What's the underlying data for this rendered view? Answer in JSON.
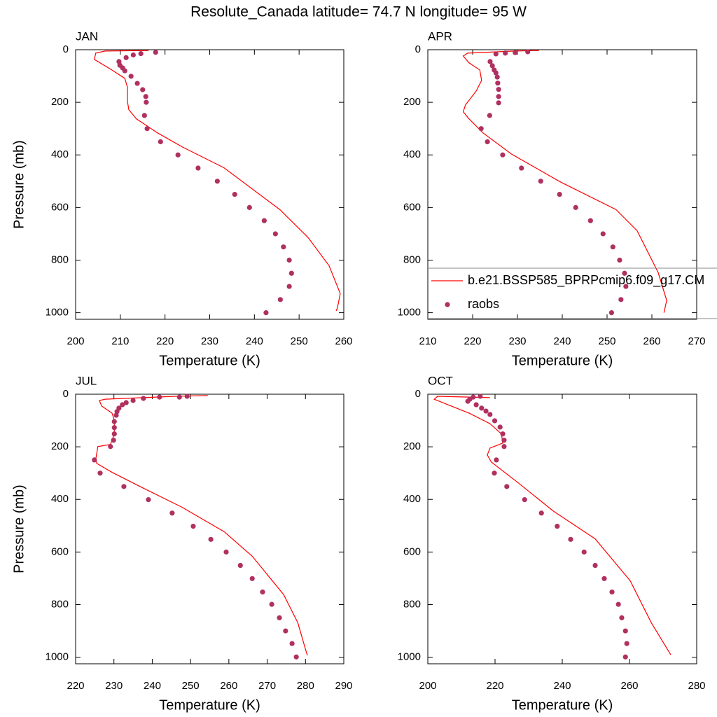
{
  "title": "Resolute_Canada  latitude= 74.7 N longitude= 95 W",
  "chart_data": [
    {
      "type": "line",
      "title": "JAN",
      "x_label": "Temperature (K)",
      "y_label": "Pressure (mb)",
      "xlim": [
        200,
        260
      ],
      "xticks": [
        200,
        210,
        220,
        230,
        240,
        250,
        260
      ],
      "ylim": [
        0,
        1025
      ],
      "y_reversed": true,
      "yticks": [
        0,
        200,
        400,
        600,
        800,
        1000
      ],
      "series": [
        {
          "color": "#ff0000",
          "style": "line",
          "x": [
            216.3,
            206.6,
            204.5,
            204.2,
            208.1,
            211.0,
            211.6,
            211.6,
            211.9,
            213.6,
            216.0,
            218.3,
            223.8,
            233.2,
            245.7,
            252.0,
            256.7,
            259.2,
            258.6,
            258.3
          ],
          "values": [
            3,
            5,
            13,
            37,
            77,
            109,
            143,
            197,
            228,
            263,
            290,
            316,
            369,
            449,
            608,
            714,
            821,
            927,
            980,
            993
          ]
        },
        {
          "color": "#b03060",
          "style": "marker",
          "x": [
            217.9,
            214.6,
            212.9,
            211.3,
            209.7,
            209.9,
            210.5,
            211.0,
            212.4,
            213.8,
            215.0,
            215.7,
            215.8,
            215.4,
            216.0,
            219.0,
            222.9,
            227.4,
            231.7,
            235.6,
            238.9,
            242.2,
            244.7,
            246.5,
            247.8,
            248.3,
            247.8,
            245.8,
            242.6
          ],
          "values": [
            10,
            15,
            20,
            30,
            45,
            59,
            69,
            80,
            101,
            128,
            152,
            178,
            200,
            250,
            300,
            350,
            400,
            450,
            500,
            550,
            600,
            650,
            700,
            750,
            800,
            850,
            900,
            950,
            1000
          ]
        }
      ]
    },
    {
      "type": "line",
      "title": "APR",
      "x_label": "Temperature (K)",
      "xlim": [
        210,
        270
      ],
      "xticks": [
        210,
        220,
        230,
        240,
        250,
        260,
        270
      ],
      "ylim": [
        0,
        1025
      ],
      "y_reversed": true,
      "yticks": [
        0,
        200,
        400,
        600,
        800,
        1000
      ],
      "legend": "lower right",
      "series": [
        {
          "name": "b.e21.BSSP585_BPRPcmip6.f09_g17.CM",
          "color": "#ff0000",
          "style": "line",
          "x": [
            234.8,
            229.4,
            218.9,
            217.9,
            219.2,
            221.6,
            222.0,
            220.8,
            218.4,
            217.9,
            219.2,
            222.3,
            228.6,
            239.5,
            252.0,
            256.7,
            261.4,
            263.3,
            262.7
          ],
          "values": [
            3,
            5,
            13,
            24,
            50,
            77,
            117,
            157,
            210,
            236,
            263,
            316,
            396,
            502,
            608,
            688,
            847,
            953,
            1000
          ]
        },
        {
          "name": "raobs",
          "color": "#b03060",
          "style": "marker",
          "x": [
            232.3,
            229.5,
            227.3,
            225.2,
            223.9,
            224.4,
            224.8,
            225.2,
            225.5,
            225.6,
            225.8,
            225.8,
            225.8,
            223.8,
            221.9,
            223.3,
            226.7,
            230.9,
            235.2,
            239.4,
            243.0,
            246.3,
            249.1,
            251.3,
            252.8,
            253.9,
            254.2,
            253.1,
            251.0
          ],
          "values": [
            8,
            11,
            13,
            16,
            45,
            61,
            77,
            88,
            104,
            127,
            151,
            178,
            202,
            250,
            300,
            350,
            400,
            450,
            500,
            550,
            600,
            650,
            700,
            750,
            800,
            850,
            900,
            950,
            1000
          ]
        }
      ]
    },
    {
      "type": "line",
      "title": "JUL",
      "x_label": "Temperature (K)",
      "y_label": "Pressure (mb)",
      "xlim": [
        220,
        290
      ],
      "xticks": [
        220,
        230,
        240,
        250,
        260,
        270,
        280,
        290
      ],
      "ylim": [
        0,
        1025
      ],
      "y_reversed": true,
      "yticks": [
        0,
        200,
        400,
        600,
        800,
        1000
      ],
      "series": [
        {
          "color": "#ff0000",
          "style": "line",
          "x": [
            254.5,
            246.0,
            227.7,
            226.2,
            226.8,
            229.5,
            230.1,
            230.1,
            229.1,
            225.8,
            225.3,
            225.5,
            229.5,
            236.8,
            247.8,
            258.8,
            266.1,
            274.3,
            278.0,
            280.1,
            280.5
          ],
          "values": [
            5,
            8,
            19,
            24,
            45,
            72,
            98,
            151,
            191,
            199,
            244,
            263,
            297,
            351,
            430,
            523,
            616,
            762,
            869,
            975,
            993
          ]
        },
        {
          "color": "#b03060",
          "style": "marker",
          "x": [
            249.1,
            247.1,
            241.9,
            237.7,
            235.0,
            233.2,
            232.2,
            231.3,
            230.8,
            230.6,
            230.1,
            230.1,
            230.1,
            229.9,
            229.1,
            224.9,
            226.4,
            232.6,
            239.0,
            245.2,
            250.7,
            255.3,
            259.3,
            263.0,
            266.1,
            268.8,
            271.2,
            273.2,
            274.8,
            276.5,
            277.6
          ],
          "values": [
            8,
            11,
            11,
            16,
            24,
            32,
            40,
            53,
            66,
            80,
            104,
            127,
            151,
            175,
            199,
            250,
            300,
            351,
            401,
            452,
            502,
            552,
            600,
            651,
            701,
            752,
            799,
            850,
            900,
            948,
            999
          ]
        }
      ]
    },
    {
      "type": "line",
      "title": "OCT",
      "x_label": "Temperature (K)",
      "xlim": [
        200,
        280
      ],
      "xticks": [
        200,
        220,
        240,
        260,
        280
      ],
      "ylim": [
        0,
        1025
      ],
      "y_reversed": true,
      "yticks": [
        0,
        200,
        400,
        600,
        800,
        1000
      ],
      "series": [
        {
          "color": "#ff0000",
          "style": "line",
          "x": [
            218.5,
            202.9,
            201.9,
            206.0,
            212.3,
            218.5,
            221.9,
            222.3,
            218.5,
            217.7,
            218.9,
            226.9,
            237.3,
            249.8,
            260.2,
            266.5,
            272.3
          ],
          "values": [
            13,
            8,
            19,
            40,
            72,
            112,
            151,
            186,
            205,
            231,
            258,
            337,
            444,
            550,
            709,
            869,
            991
          ]
        },
        {
          "color": "#b03060",
          "style": "marker",
          "x": [
            215.6,
            213.5,
            212.5,
            211.9,
            214.4,
            216.0,
            217.3,
            218.5,
            219.9,
            221.5,
            222.3,
            222.7,
            222.7,
            220.4,
            219.8,
            223.5,
            228.8,
            233.8,
            238.5,
            242.5,
            246.5,
            249.8,
            252.5,
            254.8,
            256.7,
            257.7,
            258.8,
            259.2,
            258.8
          ],
          "values": [
            8,
            11,
            19,
            27,
            40,
            53,
            64,
            77,
            101,
            125,
            151,
            175,
            199,
            250,
            300,
            351,
            401,
            452,
            502,
            552,
            600,
            651,
            701,
            752,
            799,
            850,
            900,
            948,
            999
          ]
        }
      ]
    }
  ]
}
